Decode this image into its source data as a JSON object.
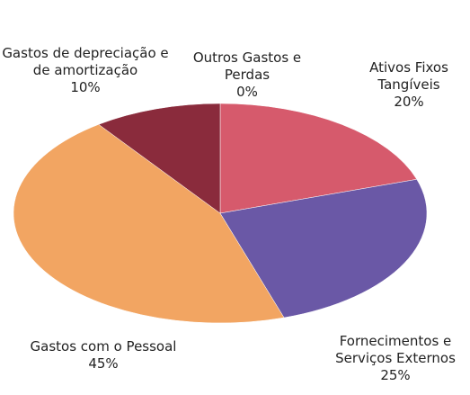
{
  "chart_data": {
    "type": "pie",
    "categories": [
      "Ativos Fixos Tangíveis",
      "Fornecimentos e Serviços Externos",
      "Gastos com o Pessoal",
      "Gastos de depreciação e de amortização",
      "Outros Gastos e Perdas"
    ],
    "values": [
      20,
      25,
      45,
      10,
      0
    ],
    "value_labels": [
      "20%",
      "25%",
      "45%",
      "10%",
      "0%"
    ],
    "colors": [
      "#d65a6c",
      "#6a58a6",
      "#f2a562",
      "#8a2b3c",
      "#b04050"
    ]
  }
}
